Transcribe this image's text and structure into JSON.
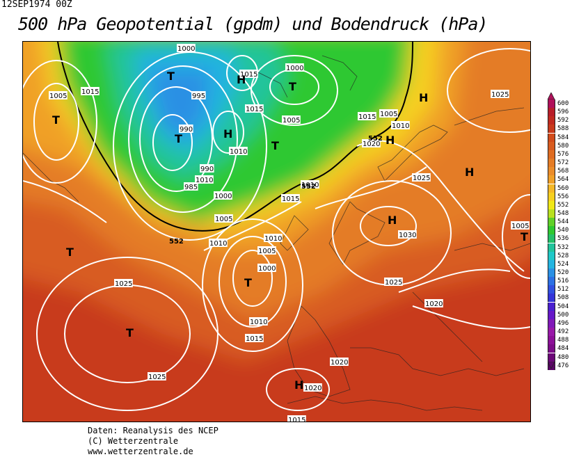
{
  "header": {
    "date": "12SEP1974 00Z",
    "title": "500 hPa Geopotential (gpdm) und Bodendruck (hPa)"
  },
  "footer": {
    "lines": [
      "Daten: Reanalysis des NCEP",
      "(C) Wetterzentrale",
      "www.wetterzentrale.de"
    ]
  },
  "legend": {
    "levels": [
      {
        "value": "600",
        "color": "#b0105a"
      },
      {
        "value": "596",
        "color": "#b81e2a"
      },
      {
        "value": "592",
        "color": "#c02a20"
      },
      {
        "value": "588",
        "color": "#c83a1c"
      },
      {
        "value": "584",
        "color": "#d24c1c"
      },
      {
        "value": "580",
        "color": "#d85c20"
      },
      {
        "value": "576",
        "color": "#de6c22"
      },
      {
        "value": "572",
        "color": "#e47c26"
      },
      {
        "value": "568",
        "color": "#ea8c2a"
      },
      {
        "value": "564",
        "color": "#f0a028"
      },
      {
        "value": "560",
        "color": "#f4b828"
      },
      {
        "value": "556",
        "color": "#f6d020"
      },
      {
        "value": "552",
        "color": "#f0e818"
      },
      {
        "value": "548",
        "color": "#b8e020"
      },
      {
        "value": "544",
        "color": "#60d028"
      },
      {
        "value": "540",
        "color": "#2ec830"
      },
      {
        "value": "536",
        "color": "#24c068"
      },
      {
        "value": "532",
        "color": "#22c49c"
      },
      {
        "value": "528",
        "color": "#20c8c8"
      },
      {
        "value": "524",
        "color": "#24b4e0"
      },
      {
        "value": "520",
        "color": "#2a90e4"
      },
      {
        "value": "516",
        "color": "#2c70e4"
      },
      {
        "value": "512",
        "color": "#3050e0"
      },
      {
        "value": "508",
        "color": "#3434d8"
      },
      {
        "value": "504",
        "color": "#4a20d0"
      },
      {
        "value": "500",
        "color": "#6618c8"
      },
      {
        "value": "496",
        "color": "#8018b8"
      },
      {
        "value": "492",
        "color": "#9818a8"
      },
      {
        "value": "488",
        "color": "#8c1098"
      },
      {
        "value": "484",
        "color": "#7c0c88"
      },
      {
        "value": "480",
        "color": "#6c0878"
      },
      {
        "value": "476",
        "color": "#5c0468"
      }
    ]
  },
  "map": {
    "isobar_labels": [
      "1000",
      "1015",
      "1005",
      "1015",
      "1000",
      "995",
      "1015",
      "990",
      "1015",
      "1005",
      "1005",
      "1010",
      "1010",
      "990",
      "1020",
      "1010",
      "1010",
      "985",
      "1000",
      "1015",
      "1005",
      "1010",
      "1010",
      "1005",
      "1000",
      "1025",
      "1025",
      "1030",
      "1005",
      "1010",
      "1025",
      "1020",
      "1015",
      "1020",
      "1025",
      "1020",
      "1015",
      "1025"
    ],
    "contour_labels": [
      "552",
      "552",
      "552"
    ],
    "centers": [
      "T",
      "T",
      "H",
      "T",
      "T",
      "H",
      "T",
      "H",
      "T",
      "H",
      "T",
      "T",
      "H",
      "H",
      "T",
      "H"
    ]
  }
}
